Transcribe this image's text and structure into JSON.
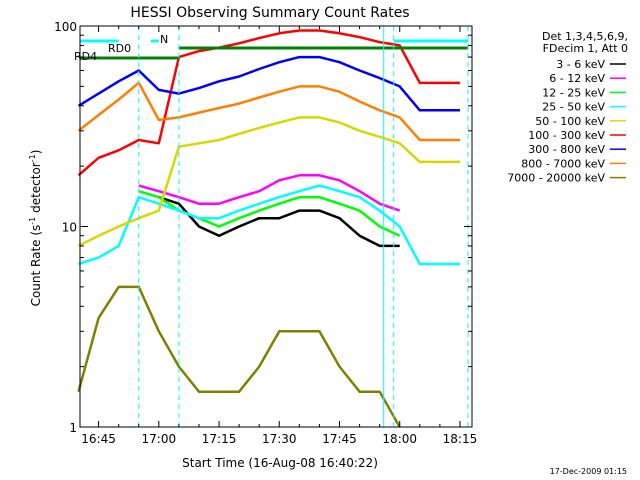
{
  "chart_data": {
    "type": "line",
    "title": "HESSI Observing Summary Count Rates",
    "xlabel": "Start Time (16-Aug-08 16:40:22)",
    "ylabel": "Count Rate (s⁻¹ detector⁻¹)",
    "ylabel_main": "Count Rate (s",
    "ylabel_sup1": "-1",
    "ylabel_mid": " detector",
    "ylabel_sup2": "-1",
    "ylabel_end": ")",
    "y_scale": "log",
    "ylim": [
      1,
      100
    ],
    "xlim": [
      "16:40:22",
      "18:18:00"
    ],
    "x_ticks": [
      "16:45",
      "17:00",
      "17:15",
      "17:30",
      "17:45",
      "18:00",
      "18:15"
    ],
    "y_ticks": [
      "1",
      "10",
      "100"
    ],
    "legend_header": [
      "Det 1,3,4,5,6,9,",
      "FDecim 1, Att 0"
    ],
    "annotations": {
      "rd0": "RD0",
      "rd4": "RD4",
      "n": "N",
      "date_stamp": "17-Dec-2009 01:15"
    },
    "series": [
      {
        "name": "3 - 6 keV",
        "color": "#000000",
        "x": [
          "16:40",
          "16:45",
          "16:50",
          "16:55",
          "17:00",
          "17:05",
          "17:10",
          "17:15",
          "17:20",
          "17:25",
          "17:30",
          "17:35",
          "17:40",
          "17:45",
          "17:50",
          "17:55",
          "18:00"
        ],
        "values": [
          null,
          null,
          null,
          null,
          14,
          13,
          10,
          9,
          10,
          11,
          11,
          12,
          12,
          11,
          9,
          8,
          8
        ]
      },
      {
        "name": "6 - 12 keV",
        "color": "#ff00ff",
        "x": [
          "16:55",
          "17:00",
          "17:05",
          "17:10",
          "17:15",
          "17:20",
          "17:25",
          "17:30",
          "17:35",
          "17:40",
          "17:45",
          "17:50",
          "17:55",
          "18:00"
        ],
        "values": [
          16,
          15,
          14,
          13,
          13,
          14,
          15,
          17,
          18,
          18,
          17,
          15,
          13,
          12
        ]
      },
      {
        "name": "12 - 25 keV",
        "color": "#00ff00",
        "x": [
          "16:55",
          "17:00",
          "17:05",
          "17:10",
          "17:15",
          "17:20",
          "17:25",
          "17:30",
          "17:35",
          "17:40",
          "17:45",
          "17:50",
          "17:55",
          "18:00"
        ],
        "values": [
          15,
          14,
          12,
          11,
          10,
          11,
          12,
          13,
          14,
          14,
          13,
          12,
          10,
          9
        ]
      },
      {
        "name": "25 - 50 keV",
        "color": "#00ffff",
        "x": [
          "16:40",
          "16:45",
          "16:50",
          "16:55",
          "17:00",
          "17:05",
          "17:10",
          "17:15",
          "17:20",
          "17:25",
          "17:30",
          "17:35",
          "17:40",
          "17:45",
          "17:50",
          "17:55",
          "18:00",
          "18:05",
          "18:10",
          "18:15"
        ],
        "values": [
          6.5,
          7,
          8,
          14,
          13,
          12,
          11,
          11,
          12,
          13,
          14,
          15,
          16,
          15,
          14,
          12,
          10,
          6.5,
          6.5,
          6.5
        ]
      },
      {
        "name": "50 - 100 keV",
        "color": "#d8d800",
        "x": [
          "16:40",
          "16:45",
          "16:50",
          "16:55",
          "17:00",
          "17:05",
          "17:10",
          "17:15",
          "17:20",
          "17:25",
          "17:30",
          "17:35",
          "17:40",
          "17:45",
          "17:50",
          "17:55",
          "18:00",
          "18:05",
          "18:10",
          "18:15"
        ],
        "values": [
          8,
          9,
          10,
          11,
          12,
          25,
          26,
          27,
          29,
          31,
          33,
          35,
          35,
          33,
          30,
          28,
          26,
          21,
          21,
          21
        ]
      },
      {
        "name": "100 - 300 keV",
        "color": "#ff0000",
        "x": [
          "16:40",
          "16:45",
          "16:50",
          "16:55",
          "17:00",
          "17:05",
          "17:10",
          "17:15",
          "17:20",
          "17:25",
          "17:30",
          "17:35",
          "17:40",
          "17:45",
          "17:50",
          "17:55",
          "18:00",
          "18:05",
          "18:10",
          "18:15"
        ],
        "values": [
          18,
          22,
          24,
          27,
          26,
          70,
          75,
          78,
          82,
          87,
          92,
          95,
          95,
          92,
          88,
          83,
          80,
          52,
          52,
          52
        ]
      },
      {
        "name": "300 - 800 keV",
        "color": "#0000ff",
        "x": [
          "16:40",
          "16:45",
          "16:50",
          "16:55",
          "17:00",
          "17:05",
          "17:10",
          "17:15",
          "17:20",
          "17:25",
          "17:30",
          "17:35",
          "17:40",
          "17:45",
          "17:50",
          "17:55",
          "18:00",
          "18:05",
          "18:10",
          "18:15"
        ],
        "values": [
          40,
          46,
          53,
          60,
          48,
          46,
          49,
          53,
          56,
          61,
          66,
          70,
          70,
          66,
          60,
          55,
          50,
          38,
          38,
          38
        ]
      },
      {
        "name": "800 - 7000 keV",
        "color": "#ff8000",
        "x": [
          "16:40",
          "16:45",
          "16:50",
          "16:55",
          "17:00",
          "17:05",
          "17:10",
          "17:15",
          "17:20",
          "17:25",
          "17:30",
          "17:35",
          "17:40",
          "17:45",
          "17:50",
          "17:55",
          "18:00",
          "18:05",
          "18:10",
          "18:15"
        ],
        "values": [
          30,
          36,
          43,
          52,
          34,
          35,
          37,
          39,
          41,
          44,
          47,
          50,
          50,
          47,
          42,
          38,
          35,
          27,
          27,
          27
        ]
      },
      {
        "name": "7000 - 20000 keV",
        "color": "#808000",
        "x": [
          "16:40",
          "16:45",
          "16:50",
          "16:55",
          "17:00",
          "17:05",
          "17:10",
          "17:15",
          "17:20",
          "17:25",
          "17:30",
          "17:35",
          "17:40",
          "17:45",
          "17:50",
          "17:55",
          "18:00"
        ],
        "values": [
          1.5,
          3.5,
          5,
          5,
          3,
          2,
          1.5,
          1.5,
          1.5,
          2,
          3,
          3,
          3,
          2,
          1.5,
          1.5,
          1
        ]
      }
    ],
    "overlays": [
      {
        "label": "RD0",
        "color": "#00ffff"
      },
      {
        "label": "RD4",
        "color": "#008000"
      }
    ]
  }
}
